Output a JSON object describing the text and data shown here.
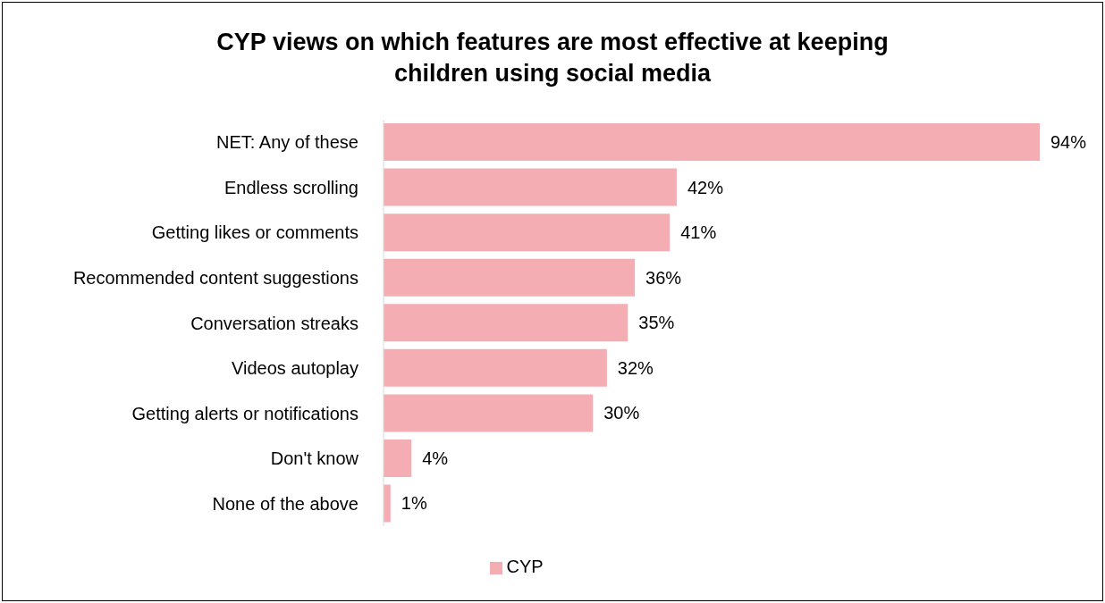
{
  "chart_data": {
    "type": "bar",
    "orientation": "horizontal",
    "title": "CYP views on which features are most effective at keeping children using social media",
    "categories": [
      "NET: Any of these",
      "Endless scrolling",
      "Getting likes or comments",
      "Recommended content suggestions",
      "Conversation streaks",
      "Videos autoplay",
      "Getting alerts or notifications",
      "Don't know",
      "None of the above"
    ],
    "series": [
      {
        "name": "CYP",
        "color": "#f4adb3",
        "values": [
          94,
          42,
          41,
          36,
          35,
          32,
          30,
          4,
          1
        ],
        "value_labels": [
          "94%",
          "42%",
          "41%",
          "36%",
          "35%",
          "32%",
          "30%",
          "4%",
          "1%"
        ]
      }
    ],
    "tick_labels": "y",
    "grid": false,
    "legend": "bottom"
  }
}
